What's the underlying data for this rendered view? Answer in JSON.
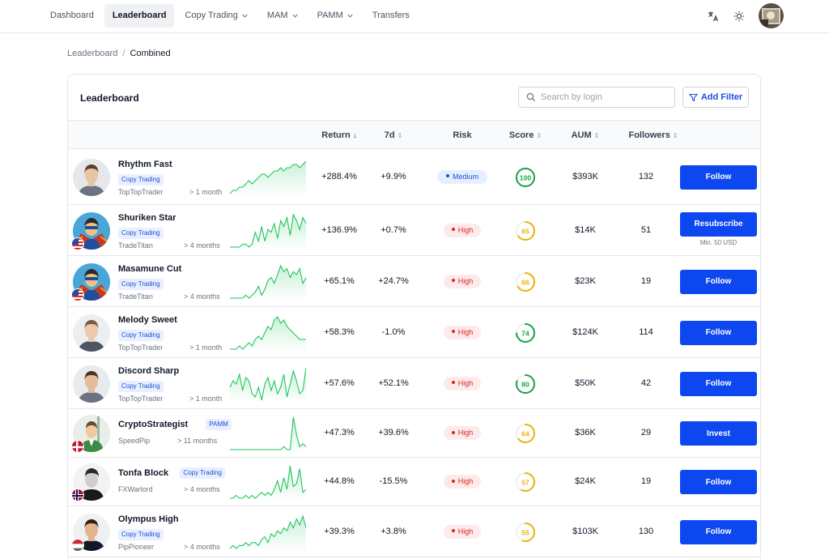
{
  "nav": {
    "items": [
      {
        "label": "Dashboard",
        "dropdown": false,
        "active": false
      },
      {
        "label": "Leaderboard",
        "dropdown": false,
        "active": true
      },
      {
        "label": "Copy Trading",
        "dropdown": true,
        "active": false
      },
      {
        "label": "MAM",
        "dropdown": true,
        "active": false
      },
      {
        "label": "PAMM",
        "dropdown": true,
        "active": false
      },
      {
        "label": "Transfers",
        "dropdown": false,
        "active": false
      }
    ],
    "icons": [
      "translate-icon",
      "sun-icon"
    ]
  },
  "breadcrumb": {
    "parent": "Leaderboard",
    "separator": "/",
    "current": "Combined"
  },
  "card": {
    "title": "Leaderboard",
    "search_placeholder": "Search by login",
    "add_filter_label": "Add Filter"
  },
  "columns": {
    "return": "Return",
    "d7": "7d",
    "risk": "Risk",
    "score": "Score",
    "aum": "AUM",
    "followers": "Followers"
  },
  "colors": {
    "accent": "#0d47f0",
    "spark": "#22c55e",
    "score_green": "#16a34a",
    "score_yellow": "#eab308",
    "risk_high": "#dc2626",
    "risk_medium": "#1d4ed8"
  },
  "rows": [
    {
      "name": "Rhythm Fast",
      "tag": "Copy Trading",
      "tag_inline": false,
      "provider": "TopTopTrader",
      "age": "> 1 month",
      "return": "+288.4%",
      "d7": "+9.9%",
      "risk": "Medium",
      "score": "100",
      "score_pct": 1.0,
      "aum": "$393K",
      "followers": "132",
      "action": "Follow",
      "action_sub": "",
      "flag": "",
      "spark": [
        2,
        3,
        3,
        4,
        4,
        5,
        6,
        5,
        6,
        7,
        8,
        8,
        7,
        8,
        9,
        9,
        10,
        9,
        10,
        10,
        11,
        11,
        10,
        11,
        12
      ]
    },
    {
      "name": "Shuriken Star",
      "tag": "Copy Trading",
      "tag_inline": false,
      "provider": "TradeTitan",
      "age": "> 4 months",
      "return": "+136.9%",
      "d7": "+0.7%",
      "risk": "High",
      "score": "65",
      "score_pct": 0.65,
      "aum": "$14K",
      "followers": "51",
      "action": "Resubscribe",
      "action_sub": "Min. 50 USD",
      "flag": "us",
      "spark": [
        1,
        1,
        1,
        1,
        2,
        2,
        1,
        2,
        6,
        3,
        8,
        3,
        7,
        6,
        9,
        4,
        10,
        8,
        11,
        5,
        12,
        10,
        7,
        11,
        9
      ]
    },
    {
      "name": "Masamune Cut",
      "tag": "Copy Trading",
      "tag_inline": false,
      "provider": "TradeTitan",
      "age": "> 4 months",
      "return": "+65.1%",
      "d7": "+24.7%",
      "risk": "High",
      "score": "66",
      "score_pct": 0.66,
      "aum": "$23K",
      "followers": "19",
      "action": "Follow",
      "action_sub": "",
      "flag": "us",
      "spark": [
        1,
        1,
        1,
        1,
        1,
        2,
        1,
        2,
        3,
        5,
        2,
        4,
        7,
        8,
        6,
        9,
        12,
        10,
        11,
        8,
        10,
        9,
        11,
        6,
        8
      ]
    },
    {
      "name": "Melody Sweet",
      "tag": "Copy Trading",
      "tag_inline": false,
      "provider": "TopTopTrader",
      "age": "> 1 month",
      "return": "+58.3%",
      "d7": "-1.0%",
      "risk": "High",
      "score": "74",
      "score_pct": 0.74,
      "aum": "$124K",
      "followers": "114",
      "action": "Follow",
      "action_sub": "",
      "flag": "",
      "spark": [
        1,
        1,
        1,
        2,
        1,
        2,
        3,
        2,
        4,
        5,
        4,
        6,
        8,
        7,
        10,
        11,
        9,
        10,
        8,
        7,
        6,
        5,
        4,
        4,
        4
      ]
    },
    {
      "name": "Discord Sharp",
      "tag": "Copy Trading",
      "tag_inline": false,
      "provider": "TopTopTrader",
      "age": "> 1 month",
      "return": "+57.6%",
      "d7": "+52.1%",
      "risk": "High",
      "score": "80",
      "score_pct": 0.8,
      "aum": "$50K",
      "followers": "42",
      "action": "Follow",
      "action_sub": "",
      "flag": "",
      "spark": [
        6,
        8,
        7,
        10,
        5,
        9,
        8,
        4,
        3,
        6,
        2,
        7,
        9,
        5,
        8,
        4,
        6,
        10,
        3,
        7,
        11,
        8,
        4,
        5,
        12
      ]
    },
    {
      "name": "CryptoStrategist",
      "tag": "PAMM",
      "tag_inline": true,
      "provider": "SpeedPip",
      "age": "> 11 months",
      "return": "+47.3%",
      "d7": "+39.6%",
      "risk": "High",
      "score": "64",
      "score_pct": 0.64,
      "aum": "$36K",
      "followers": "29",
      "action": "Invest",
      "action_sub": "",
      "flag": "dk",
      "spark": [
        1,
        1,
        1,
        1,
        1,
        1,
        1,
        1,
        1,
        1,
        1,
        1,
        1,
        1,
        1,
        1,
        1,
        2,
        1,
        1,
        12,
        6,
        2,
        3,
        2
      ]
    },
    {
      "name": "Tonfa Block",
      "tag": "Copy Trading",
      "tag_inline": true,
      "provider": "FXWarlord",
      "age": "> 4 months",
      "return": "+44.8%",
      "d7": "-15.5%",
      "risk": "High",
      "score": "57",
      "score_pct": 0.57,
      "aum": "$24K",
      "followers": "19",
      "action": "Follow",
      "action_sub": "",
      "flag": "no",
      "spark": [
        1,
        1,
        2,
        1,
        1,
        2,
        1,
        2,
        1,
        2,
        3,
        2,
        3,
        2,
        4,
        7,
        3,
        8,
        4,
        12,
        5,
        6,
        11,
        3,
        4
      ]
    },
    {
      "name": "Olympus High",
      "tag": "Copy Trading",
      "tag_inline": false,
      "provider": "PipPioneer",
      "age": "> 4 months",
      "return": "+39.3%",
      "d7": "+3.8%",
      "risk": "High",
      "score": "55",
      "score_pct": 0.55,
      "aum": "$103K",
      "followers": "130",
      "action": "Follow",
      "action_sub": "",
      "flag": "hu",
      "spark": [
        1,
        2,
        1,
        2,
        2,
        3,
        2,
        3,
        3,
        2,
        4,
        5,
        3,
        6,
        5,
        7,
        6,
        8,
        7,
        10,
        8,
        11,
        9,
        12,
        8
      ]
    }
  ]
}
